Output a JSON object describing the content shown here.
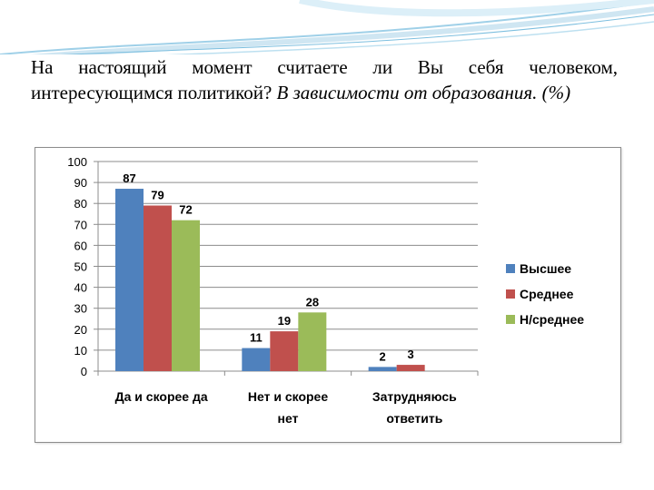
{
  "slide": {
    "title_main": "На настоящий момент считаете ли Вы себя человеком, интересующимся политикой?",
    "title_italic": "В зависимости от образования. (%)"
  },
  "chart_data": {
    "type": "bar",
    "title": "",
    "xlabel": "",
    "ylabel": "",
    "ylim": [
      0,
      100
    ],
    "yticks": [
      0,
      10,
      20,
      30,
      40,
      50,
      60,
      70,
      80,
      90,
      100
    ],
    "grid": true,
    "legend_position": "right",
    "categories": [
      [
        "Да и скорее да"
      ],
      [
        "Нет и скорее",
        "нет"
      ],
      [
        "Затрудняюсь",
        "ответить"
      ]
    ],
    "series": [
      {
        "name": "Высшее",
        "color": "#4f81bd",
        "values": [
          87,
          11,
          2
        ]
      },
      {
        "name": "Среднее",
        "color": "#c0504d",
        "values": [
          79,
          19,
          3
        ]
      },
      {
        "name": "Н/среднее",
        "color": "#9bbb59",
        "values": [
          72,
          28,
          null
        ]
      }
    ]
  }
}
